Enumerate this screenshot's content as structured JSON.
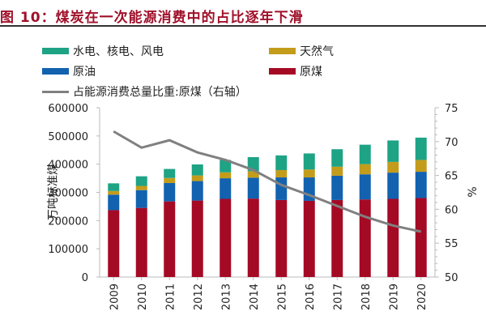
{
  "title": "图 10：煤炭在一次能源消费中的占比逐年下滑",
  "chart_data": {
    "type": "bar",
    "stacked": true,
    "categories": [
      "2009",
      "2010",
      "2011",
      "2012",
      "2013",
      "2014",
      "2015",
      "2016",
      "2017",
      "2018",
      "2019",
      "2020"
    ],
    "series": [
      {
        "name": "原煤",
        "color": "#a50a25",
        "values": [
          237000,
          245000,
          268000,
          271000,
          277000,
          278000,
          273000,
          270000,
          273000,
          275000,
          277000,
          280000
        ]
      },
      {
        "name": "原油",
        "color": "#1262b0",
        "values": [
          55000,
          63000,
          65000,
          69000,
          73000,
          74000,
          80000,
          83000,
          86000,
          89000,
          93000,
          93000
        ]
      },
      {
        "name": "天然气",
        "color": "#c49c1c",
        "values": [
          13000,
          15000,
          18000,
          20000,
          21000,
          23000,
          26000,
          28000,
          32000,
          36000,
          38000,
          42000
        ]
      },
      {
        "name": "水电、核电、风电",
        "color": "#1ea385",
        "values": [
          27000,
          34000,
          32000,
          39000,
          44000,
          50000,
          52000,
          57000,
          62000,
          69000,
          76000,
          79000
        ]
      }
    ],
    "line_series": {
      "name": "占能源消费总量比重:原煤（右轴）",
      "color": "#808080",
      "axis": "right",
      "values": [
        71.5,
        69.1,
        70.2,
        68.4,
        67.3,
        65.8,
        63.6,
        62.1,
        60.5,
        58.9,
        57.6,
        56.7
      ]
    },
    "ylabel": "万吨标准煤",
    "ylim": [
      0,
      600000
    ],
    "yticks": [
      "0",
      "100000",
      "200000",
      "300000",
      "400000",
      "500000",
      "600000"
    ],
    "y2label": "%",
    "y2lim": [
      50,
      75
    ],
    "y2ticks": [
      "50",
      "55",
      "60",
      "65",
      "70",
      "75"
    ],
    "legend_order": [
      "水电、核电、风电",
      "天然气",
      "原油",
      "原煤"
    ],
    "legend_placement": "top",
    "grid": false
  }
}
